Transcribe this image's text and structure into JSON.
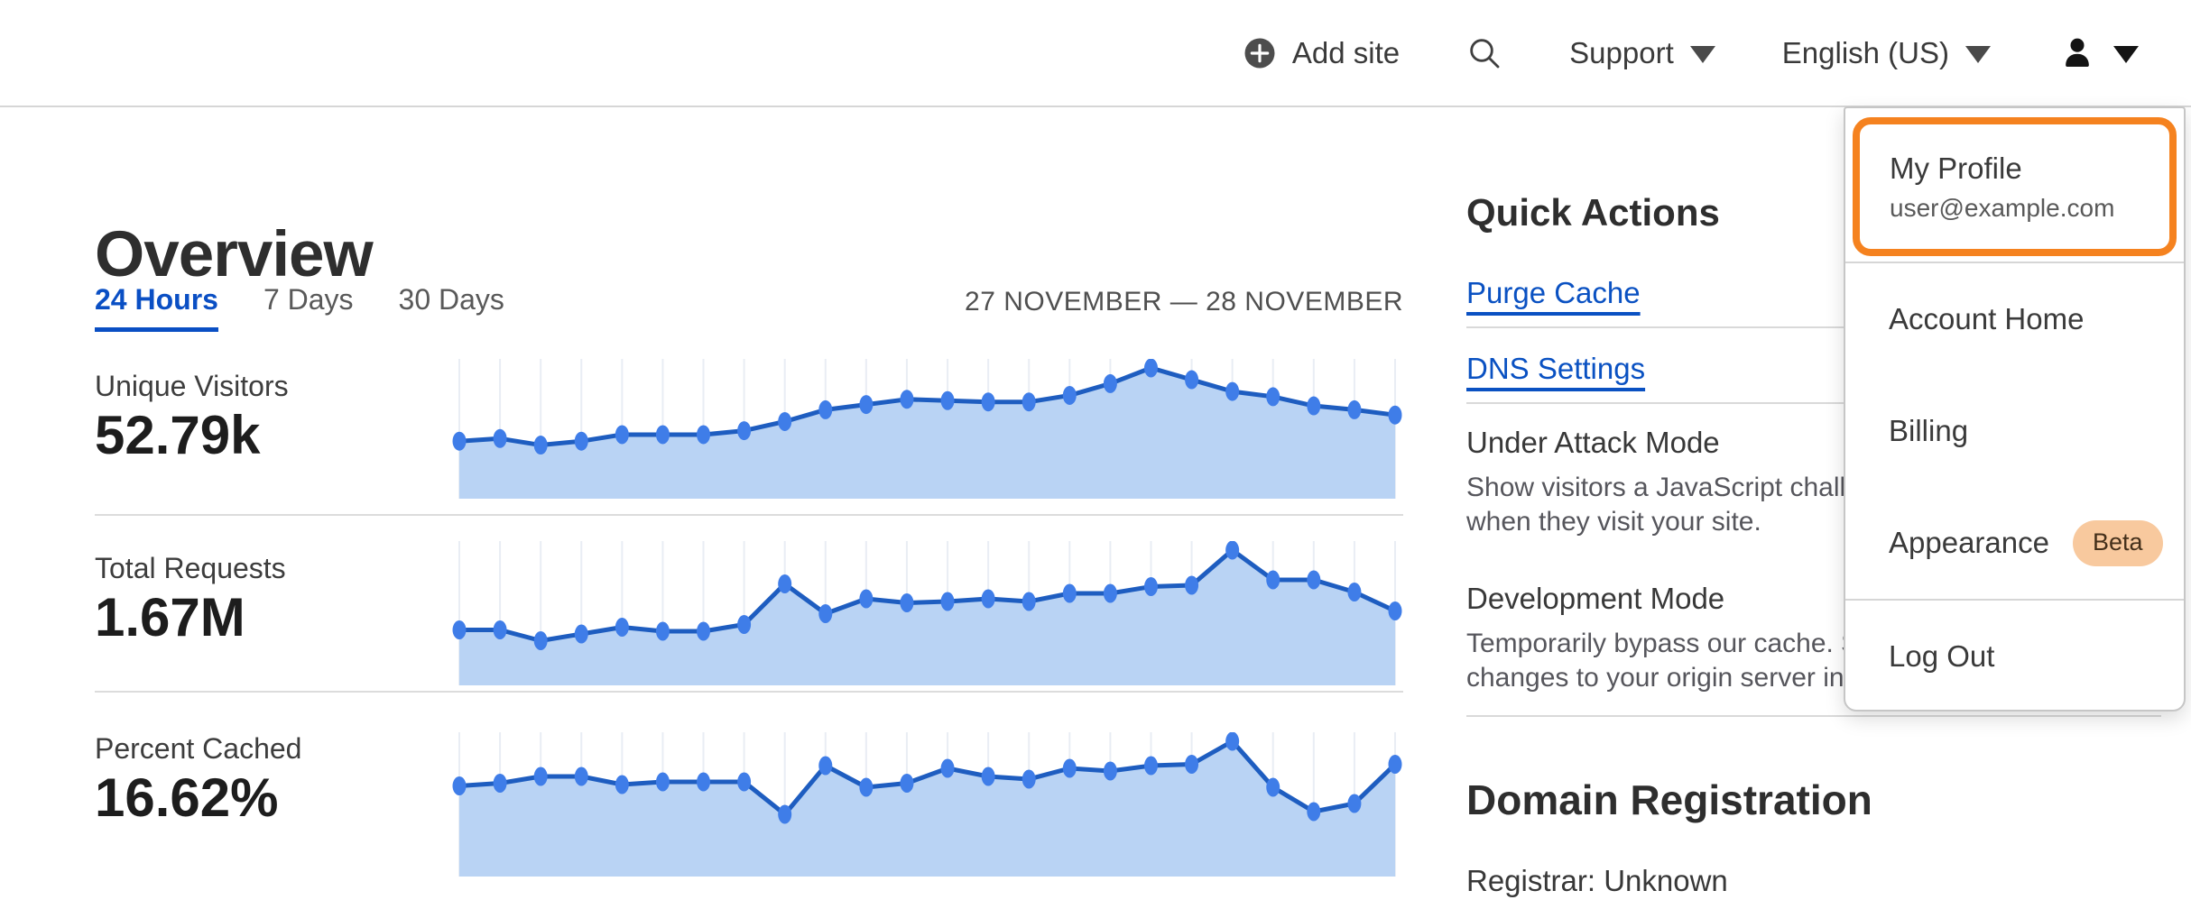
{
  "nav": {
    "add_site": "Add site",
    "support": "Support",
    "language": "English (US)"
  },
  "overview": {
    "title": "Overview",
    "tabs": [
      {
        "label": "24 Hours",
        "active": true
      },
      {
        "label": "7 Days",
        "active": false
      },
      {
        "label": "30 Days",
        "active": false
      }
    ],
    "date_range": "27 NOVEMBER — 28 NOVEMBER"
  },
  "metrics": [
    {
      "label": "Unique Visitors",
      "value": "52.79k"
    },
    {
      "label": "Total Requests",
      "value": "1.67M"
    },
    {
      "label": "Percent Cached",
      "value": "16.62%"
    }
  ],
  "chart_data": [
    {
      "type": "area",
      "title": "Unique Visitors",
      "total_label": "52.79k",
      "x_range": "27 November — 28 November, hourly (24 points, no axis labels shown)",
      "values_relative": [
        0.44,
        0.46,
        0.41,
        0.44,
        0.49,
        0.49,
        0.49,
        0.52,
        0.59,
        0.68,
        0.72,
        0.76,
        0.75,
        0.74,
        0.74,
        0.79,
        0.88,
        1.0,
        0.91,
        0.82,
        0.78,
        0.71,
        0.68,
        0.64
      ],
      "grid": "vertical-light",
      "line_color": "#1e5dc0",
      "dot_color": "#3f7de8",
      "fill_color": "#b9d3f4",
      "grid_color": "#e9edf4"
    },
    {
      "type": "area",
      "title": "Total Requests",
      "total_label": "1.67M",
      "x_range": "27 November — 28 November, hourly (24 points, no axis labels shown)",
      "values_relative": [
        0.41,
        0.41,
        0.33,
        0.38,
        0.43,
        0.4,
        0.4,
        0.45,
        0.75,
        0.53,
        0.64,
        0.61,
        0.62,
        0.64,
        0.62,
        0.68,
        0.68,
        0.73,
        0.74,
        1.0,
        0.78,
        0.78,
        0.69,
        0.55
      ],
      "grid": "vertical-light",
      "line_color": "#1e5dc0",
      "dot_color": "#3f7de8",
      "fill_color": "#b9d3f4",
      "grid_color": "#e9edf4"
    },
    {
      "type": "area",
      "title": "Percent Cached",
      "total_label": "16.62%",
      "x_range": "27 November — 28 November, hourly (24 points, no axis labels shown)",
      "values_relative": [
        0.67,
        0.69,
        0.74,
        0.74,
        0.68,
        0.7,
        0.7,
        0.7,
        0.46,
        0.82,
        0.66,
        0.69,
        0.8,
        0.74,
        0.72,
        0.8,
        0.78,
        0.82,
        0.83,
        1.0,
        0.66,
        0.48,
        0.54,
        0.83
      ],
      "grid": "vertical-light",
      "line_color": "#1e5dc0",
      "dot_color": "#3f7de8",
      "fill_color": "#b9d3f4",
      "grid_color": "#e9edf4"
    }
  ],
  "quick_actions": {
    "title": "Quick Actions",
    "links": [
      {
        "label": "Purge Cache"
      },
      {
        "label": "DNS Settings"
      }
    ],
    "toggles": [
      {
        "label": "Under Attack Mode",
        "description": "Show visitors a JavaScript challenge\nwhen they visit your site."
      },
      {
        "label": "Development Mode",
        "description": "Temporarily bypass our cache. See\nchanges to your origin server in realtime."
      }
    ]
  },
  "domain_registration": {
    "title": "Domain Registration",
    "registrar": "Registrar: Unknown"
  },
  "user_dropdown": {
    "profile": {
      "label": "My Profile",
      "email": "user@example.com"
    },
    "items": [
      {
        "label": "Account Home"
      },
      {
        "label": "Billing"
      },
      {
        "label": "Appearance",
        "badge": "Beta"
      }
    ],
    "logout": {
      "label": "Log Out"
    }
  },
  "theme": {
    "accent_orange": "#f5821f",
    "link_blue": "#0a51c2",
    "active_tab_blue": "#0a4fc4",
    "chart_line": "#1e5dc0",
    "chart_dot": "#3f7de8",
    "chart_fill": "#b9d3f4",
    "beta_badge_bg": "#f8c99e"
  }
}
